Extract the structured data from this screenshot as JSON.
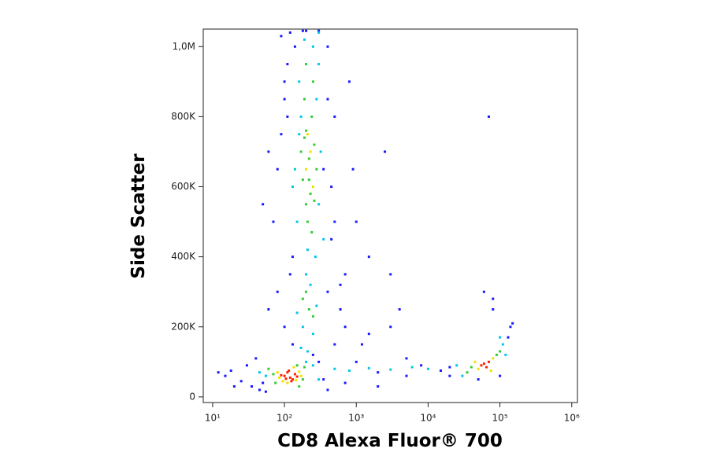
{
  "chart_data": {
    "type": "scatter",
    "x_label": "CD8 Alexa Fluor® 700",
    "y_label": "Side Scatter",
    "xscale": "log",
    "xlim": [
      7.4,
      1200000
    ],
    "xticks": [
      {
        "value": 10,
        "label": "10¹"
      },
      {
        "value": 100,
        "label": "10²"
      },
      {
        "value": 1000,
        "label": "10³"
      },
      {
        "value": 10000,
        "label": "10⁴"
      },
      {
        "value": 100000,
        "label": "10⁵"
      },
      {
        "value": 1000000,
        "label": "10⁶"
      }
    ],
    "ylim": [
      -16000,
      1050000
    ],
    "yticks": [
      0,
      {
        "value": 200000,
        "label": "200K"
      },
      {
        "value": 400000,
        "label": "400K"
      },
      {
        "value": 600000,
        "label": "600K"
      },
      {
        "value": 800000,
        "label": "800K"
      },
      {
        "value": 1000000,
        "label": "1,0M"
      }
    ],
    "series": [
      {
        "color": "#1a1aff",
        "x": [
          30,
          40,
          50,
          20,
          15,
          60,
          80,
          100,
          400,
          500,
          600,
          700,
          450,
          120,
          90,
          100,
          80,
          110,
          130,
          70,
          500,
          400,
          1000,
          2000,
          5000,
          8000,
          15000,
          20000,
          3000,
          1500,
          700,
          900,
          2500,
          4000,
          60000,
          70000,
          80000,
          1000,
          1200,
          800,
          12,
          25,
          35,
          18,
          300,
          350,
          400,
          450,
          500,
          120,
          140,
          110,
          100,
          90,
          60,
          50,
          130,
          250,
          350,
          400,
          700,
          2000,
          5000,
          20000,
          50000,
          80000,
          100000,
          140000,
          130000,
          150000,
          600,
          1500,
          3000,
          300,
          200,
          180,
          45,
          55
        ],
        "values": [
          90000,
          110000,
          40000,
          30000,
          60000,
          250000,
          300000,
          200000,
          300000,
          150000,
          250000,
          200000,
          600000,
          350000,
          750000,
          900000,
          650000,
          800000,
          400000,
          500000,
          800000,
          1000000,
          100000,
          70000,
          60000,
          90000,
          75000,
          85000,
          200000,
          400000,
          350000,
          650000,
          700000,
          250000,
          300000,
          800000,
          250000,
          500000,
          150000,
          900000,
          70000,
          45000,
          30000,
          75000,
          100000,
          650000,
          850000,
          450000,
          500000,
          1040000,
          1000000,
          950000,
          850000,
          1030000,
          700000,
          550000,
          150000,
          120000,
          50000,
          20000,
          40000,
          30000,
          110000,
          60000,
          50000,
          280000,
          60000,
          200000,
          170000,
          210000,
          320000,
          180000,
          350000,
          1045000,
          1045000,
          1045000,
          20000,
          15000
        ]
      },
      {
        "color": "#00c8e6",
        "x": [
          150,
          300,
          170,
          320,
          140,
          160,
          280,
          350,
          130,
          300,
          250,
          190,
          210,
          270,
          160,
          180,
          230,
          280,
          150,
          250,
          200,
          55,
          45,
          250,
          300,
          200,
          500,
          800,
          1500,
          3000,
          6000,
          10000,
          25000,
          30000,
          110000,
          120000,
          100000,
          210,
          170,
          300
        ],
        "values": [
          500000,
          550000,
          800000,
          700000,
          650000,
          900000,
          850000,
          450000,
          600000,
          950000,
          1000000,
          1020000,
          420000,
          400000,
          750000,
          200000,
          320000,
          260000,
          240000,
          180000,
          350000,
          60000,
          70000,
          90000,
          50000,
          100000,
          80000,
          75000,
          82000,
          78000,
          85000,
          80000,
          90000,
          60000,
          150000,
          120000,
          170000,
          130000,
          140000,
          1040000
        ]
      },
      {
        "color": "#33cc33",
        "x": [
          200,
          180,
          220,
          260,
          240,
          190,
          210,
          230,
          170,
          280,
          250,
          200,
          220,
          260,
          190,
          220,
          180,
          250,
          200,
          70,
          60,
          180,
          190,
          75,
          40000,
          90000,
          35000,
          100000,
          150,
          160,
          240,
          200
        ],
        "values": [
          550000,
          620000,
          680000,
          720000,
          800000,
          850000,
          500000,
          580000,
          700000,
          650000,
          900000,
          760000,
          620000,
          560000,
          740000,
          250000,
          280000,
          230000,
          300000,
          65000,
          80000,
          50000,
          85000,
          40000,
          85000,
          120000,
          70000,
          130000,
          90000,
          30000,
          470000,
          950000
        ]
      },
      {
        "color": "#f0e000",
        "x": [
          80,
          160,
          95,
          145,
          170,
          135,
          85,
          110,
          200,
          230,
          250,
          210,
          50000,
          80000,
          45000,
          75000
        ],
        "values": [
          70000,
          72000,
          45000,
          48000,
          60000,
          85000,
          55000,
          40000,
          650000,
          700000,
          600000,
          750000,
          80000,
          110000,
          100000,
          75000
        ]
      },
      {
        "color": "#ff2000",
        "x": [
          100,
          120,
          140,
          110,
          130,
          90,
          150,
          115,
          125,
          105,
          60000,
          70000,
          55000,
          65000
        ],
        "values": [
          60000,
          55000,
          65000,
          70000,
          50000,
          62000,
          58000,
          75000,
          45000,
          52000,
          95000,
          100000,
          90000,
          85000
        ]
      }
    ]
  }
}
